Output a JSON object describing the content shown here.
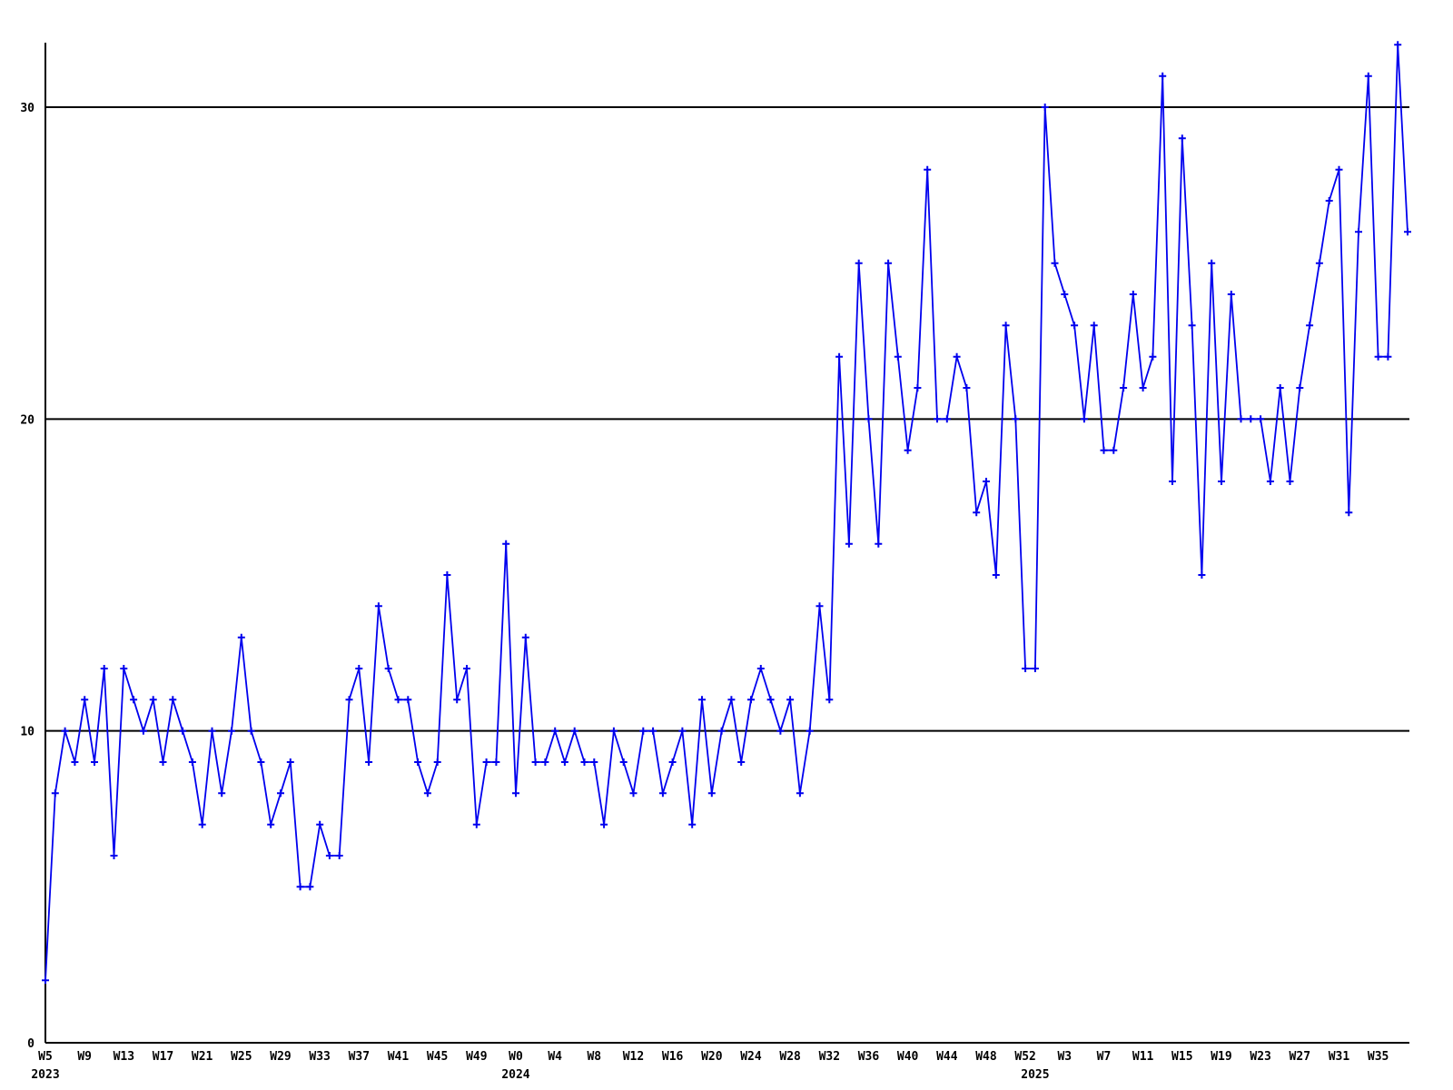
{
  "chart_data": {
    "type": "line",
    "title": "",
    "xlabel": "",
    "ylabel": "",
    "legend": "none",
    "grid": "horizontal-only",
    "line_color": "#0000ee",
    "axis_color": "#000000",
    "marker": "plus",
    "y_axis": {
      "tick_values": [
        0,
        10,
        20,
        30
      ],
      "gridline_values": [
        10,
        20,
        30
      ],
      "range": [
        0,
        32.1
      ]
    },
    "x_axis": {
      "weeks_per_tick": 4,
      "ticks": [
        {
          "i": 0,
          "label": "W5"
        },
        {
          "i": 4,
          "label": "W9"
        },
        {
          "i": 8,
          "label": "W13"
        },
        {
          "i": 12,
          "label": "W17"
        },
        {
          "i": 16,
          "label": "W21"
        },
        {
          "i": 20,
          "label": "W25"
        },
        {
          "i": 24,
          "label": "W29"
        },
        {
          "i": 28,
          "label": "W33"
        },
        {
          "i": 32,
          "label": "W37"
        },
        {
          "i": 36,
          "label": "W41"
        },
        {
          "i": 40,
          "label": "W45"
        },
        {
          "i": 44,
          "label": "W49"
        },
        {
          "i": 48,
          "label": "W0"
        },
        {
          "i": 52,
          "label": "W4"
        },
        {
          "i": 56,
          "label": "W8"
        },
        {
          "i": 60,
          "label": "W12"
        },
        {
          "i": 64,
          "label": "W16"
        },
        {
          "i": 68,
          "label": "W20"
        },
        {
          "i": 72,
          "label": "W24"
        },
        {
          "i": 76,
          "label": "W28"
        },
        {
          "i": 80,
          "label": "W32"
        },
        {
          "i": 84,
          "label": "W36"
        },
        {
          "i": 88,
          "label": "W40"
        },
        {
          "i": 92,
          "label": "W44"
        },
        {
          "i": 96,
          "label": "W48"
        },
        {
          "i": 100,
          "label": "W52"
        },
        {
          "i": 104,
          "label": "W3"
        },
        {
          "i": 108,
          "label": "W7"
        },
        {
          "i": 112,
          "label": "W11"
        },
        {
          "i": 116,
          "label": "W15"
        },
        {
          "i": 120,
          "label": "W19"
        },
        {
          "i": 124,
          "label": "W23"
        },
        {
          "i": 128,
          "label": "W27"
        },
        {
          "i": 132,
          "label": "W31"
        },
        {
          "i": 136,
          "label": "W35"
        }
      ],
      "year_labels": [
        {
          "i": 0,
          "label": "2023"
        },
        {
          "i": 48,
          "label": "2024"
        },
        {
          "i": 101,
          "label": "2025"
        }
      ]
    },
    "series": [
      {
        "name": "weekly-values",
        "years": [
          {
            "year": "2023",
            "first_week": 5,
            "values": [
              2,
              8,
              10,
              9,
              11,
              9,
              12,
              6,
              12,
              11,
              10,
              11,
              9,
              11,
              10,
              9,
              7,
              10,
              8,
              10,
              13,
              10,
              9,
              7,
              8,
              9,
              5,
              5,
              7,
              6,
              6,
              11,
              12,
              9,
              14,
              12,
              11,
              11,
              9,
              8,
              9,
              15,
              11,
              12,
              7,
              9,
              9,
              16
            ]
          },
          {
            "year": "2024",
            "first_week": 0,
            "values": [
              8,
              13,
              9,
              9,
              10,
              9,
              10,
              9,
              9,
              7,
              10,
              9,
              8,
              10,
              10,
              8,
              9,
              10,
              7,
              11,
              8,
              10,
              11,
              9,
              11,
              12,
              11,
              10,
              11,
              8,
              10,
              14,
              11,
              22,
              16,
              25,
              20,
              16,
              25,
              22,
              19,
              21,
              28,
              20,
              20,
              22,
              21,
              17,
              18,
              15,
              23,
              20,
              12
            ]
          },
          {
            "year": "2025",
            "first_week": 0,
            "values": [
              12,
              30,
              25,
              24,
              23,
              20,
              23,
              19,
              19,
              21,
              24,
              21,
              22,
              31,
              18,
              29,
              23,
              15,
              25,
              18,
              24,
              20,
              20,
              20,
              18,
              21,
              18,
              21,
              23,
              25,
              27,
              28,
              17,
              26,
              31,
              22,
              22,
              32,
              26
            ]
          }
        ]
      }
    ]
  }
}
